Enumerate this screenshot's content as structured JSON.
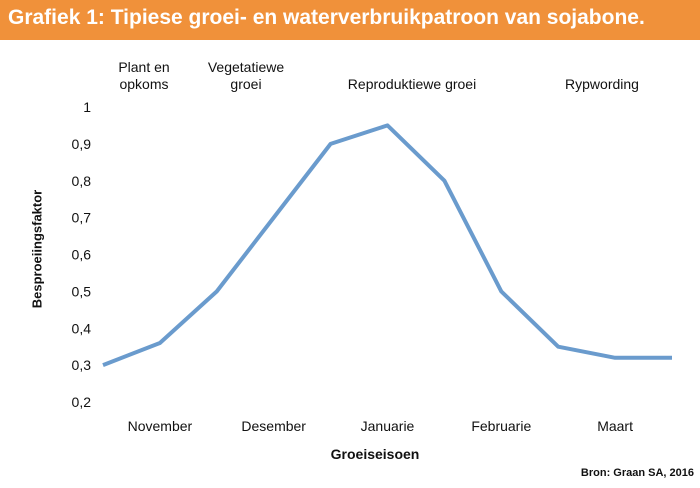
{
  "header": {
    "title": "Grafiek 1: Tipiese groei- en waterverbruikpatroon van sojabone.",
    "background_color": "#f0913a"
  },
  "phases": [
    "Plant en\nopkoms",
    "Vegetatiewe\ngroei",
    "Reproduktiewe groei",
    "Rypwording"
  ],
  "chart_data": {
    "type": "line",
    "title": "",
    "xlabel": "Groeiseisoen",
    "ylabel": "Besproeiingsfaktor",
    "categories": [
      "November",
      "Desember",
      "Januarie",
      "Februarie",
      "Maart"
    ],
    "x": [
      0,
      0.5,
      1,
      1.5,
      2,
      2.5,
      3,
      3.5,
      4,
      4.5,
      5
    ],
    "series": [
      {
        "values": [
          0.3,
          0.36,
          0.5,
          0.7,
          0.9,
          0.95,
          0.8,
          0.5,
          0.35,
          0.32,
          0.32
        ],
        "color": "#6a9bcd"
      }
    ],
    "ylim": [
      0.2,
      1
    ],
    "yticks": [
      "0,2",
      "0,3",
      "0,4",
      "0,5",
      "0,6",
      "0,7",
      "0,8",
      "0,9",
      "1"
    ],
    "grid": false,
    "legend": "none"
  },
  "source": "Bron: Graan SA, 2016"
}
